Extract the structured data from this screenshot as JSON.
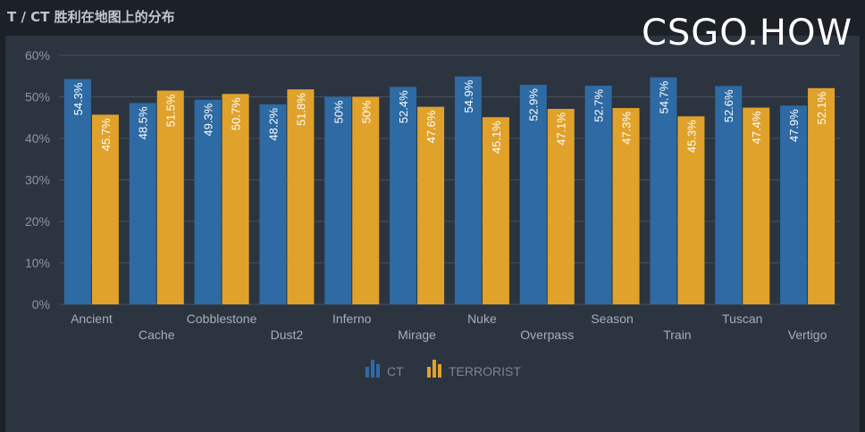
{
  "page": {
    "title": "T / CT 胜利在地图上的分布",
    "watermark": "CSGO.HOW"
  },
  "colors": {
    "ct": "#2e6aa3",
    "t": "#e0a22b",
    "grid": "#46505c",
    "background": "#2c3440"
  },
  "chart_data": {
    "type": "bar",
    "title": "T / CT 胜利在地图上的分布",
    "categories": [
      "Ancient",
      "Cache",
      "Cobblestone",
      "Dust2",
      "Inferno",
      "Mirage",
      "Nuke",
      "Overpass",
      "Season",
      "Train",
      "Tuscan",
      "Vertigo"
    ],
    "series": [
      {
        "name": "CT",
        "values": [
          54.3,
          48.5,
          49.3,
          48.2,
          50,
          52.4,
          54.9,
          52.9,
          52.7,
          54.7,
          52.6,
          47.9
        ],
        "labels": [
          "54.3%",
          "48.5%",
          "49.3%",
          "48.2%",
          "50%",
          "52.4%",
          "54.9%",
          "52.9%",
          "52.7%",
          "54.7%",
          "52.6%",
          "47.9%"
        ]
      },
      {
        "name": "TERRORIST",
        "values": [
          45.7,
          51.5,
          50.7,
          51.8,
          50,
          47.6,
          45.1,
          47.1,
          47.3,
          45.3,
          47.4,
          52.1
        ],
        "labels": [
          "45.7%",
          "51.5%",
          "50.7%",
          "51.8%",
          "50%",
          "47.6%",
          "45.1%",
          "47.1%",
          "47.3%",
          "45.3%",
          "47.4%",
          "52.1%"
        ]
      }
    ],
    "ylim": [
      0,
      60
    ],
    "yticks": [
      "0%",
      "10%",
      "20%",
      "30%",
      "40%",
      "50%",
      "60%"
    ],
    "grid": true,
    "legend": "bottom-center",
    "legend_icon": "bar-chart-icon"
  }
}
